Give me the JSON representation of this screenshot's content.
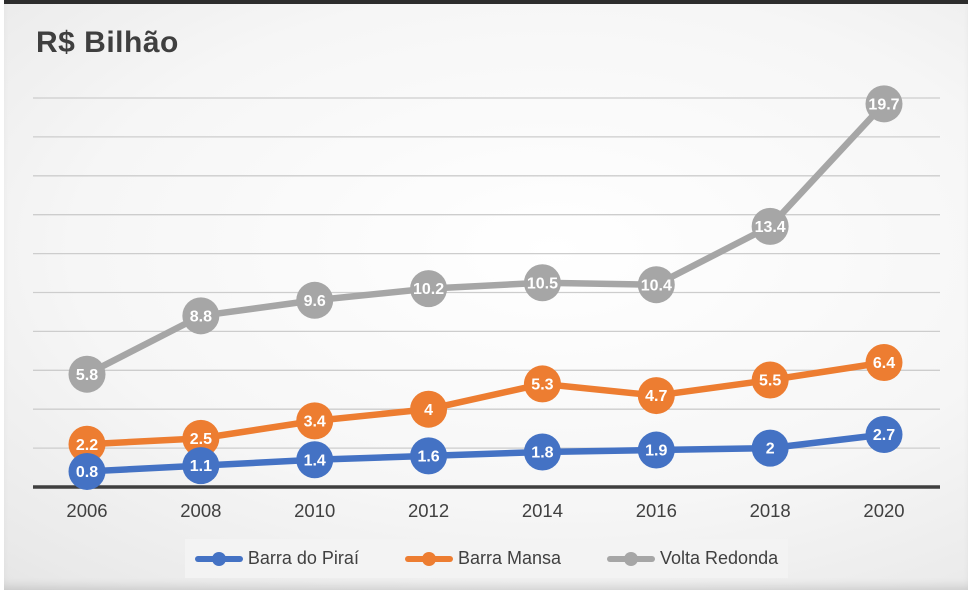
{
  "chart_data": {
    "type": "line",
    "title": "R$ Bilhão",
    "xlabel": "",
    "ylabel": "",
    "categories": [
      "2006",
      "2008",
      "2010",
      "2012",
      "2014",
      "2016",
      "2018",
      "2020"
    ],
    "series": [
      {
        "name": "Barra do Piraí",
        "color": "#4472C4",
        "values": [
          0.8,
          1.1,
          1.4,
          1.6,
          1.8,
          1.9,
          2,
          2.7
        ]
      },
      {
        "name": "Barra Mansa",
        "color": "#ED7D31",
        "values": [
          2.2,
          2.5,
          3.4,
          4,
          5.3,
          4.7,
          5.5,
          6.4
        ]
      },
      {
        "name": "Volta Redonda",
        "color": "#A6A6A6",
        "values": [
          5.8,
          8.8,
          9.6,
          10.2,
          10.5,
          10.4,
          13.4,
          19.7
        ]
      }
    ],
    "ylim": [
      0,
      20
    ],
    "gridline_step": 2,
    "grid": true,
    "y_axis_tick_labels_visible": false,
    "data_labels": "value shown in white bold inside each round marker",
    "legend_position": "bottom",
    "marker_style": "large filled circle"
  },
  "colors": {
    "title_text": "#3f3f3f",
    "axis_line": "#3f3f3f",
    "gridline": "#cdcdcd",
    "axis_label_text": "#404040",
    "data_label_text": "#ffffff",
    "legend_text": "#404040",
    "legend_background": "#f3f3f3",
    "card_top_border": "#2d2d2d"
  }
}
